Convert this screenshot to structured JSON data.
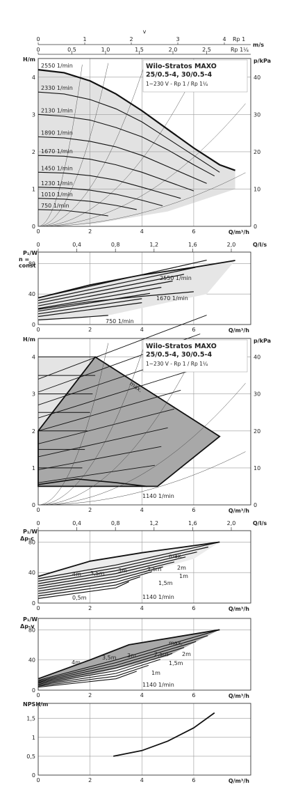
{
  "chart_data": [
    {
      "id": "h_const",
      "type": "line",
      "title": "Wilo-Stratos MAXO",
      "subtitle": "25/0.5-4, 30/0.5-4",
      "note": "1~230 V - Rp 1 / Rp 1¼",
      "ylabel": "H/m",
      "ylabel_right": "p/kPa",
      "xlabel": "Q/m³/h",
      "xlim": [
        0,
        8.2
      ],
      "ylim": [
        0,
        4.5
      ],
      "xticks": [
        0,
        2,
        4,
        6
      ],
      "yticks": [
        0,
        1,
        2,
        3,
        4
      ],
      "yticks_right": [
        0,
        10,
        20,
        30,
        40
      ],
      "top_axes": [
        {
          "label": "v",
          "ticks": [
            0,
            1,
            2,
            3,
            4
          ],
          "extra": "Rp 1",
          "unit": "m/s"
        },
        {
          "ticks": [
            0,
            0.5,
            1.0,
            1.5,
            2.0,
            2.5
          ],
          "extra": "Rp 1¼"
        }
      ],
      "series": [
        {
          "name": "2550 1/min",
          "x": [
            0,
            1,
            2,
            3,
            4,
            5,
            6,
            7,
            7.6
          ],
          "y": [
            4.2,
            4.12,
            3.9,
            3.55,
            3.1,
            2.6,
            2.1,
            1.65,
            1.5
          ]
        },
        {
          "name": "2330 1/min",
          "x": [
            0,
            1,
            2,
            3,
            4,
            5,
            6,
            7
          ],
          "y": [
            3.6,
            3.55,
            3.4,
            3.15,
            2.8,
            2.35,
            1.9,
            1.45
          ]
        },
        {
          "name": "2130 1/min",
          "x": [
            0,
            1,
            2,
            3,
            4,
            5,
            6,
            6.8
          ],
          "y": [
            3.0,
            2.95,
            2.85,
            2.65,
            2.4,
            2.05,
            1.65,
            1.35
          ]
        },
        {
          "name": "1890 1/min",
          "x": [
            0,
            1,
            2,
            3,
            4,
            5,
            6,
            6.5
          ],
          "y": [
            2.4,
            2.37,
            2.28,
            2.13,
            1.9,
            1.6,
            1.3,
            1.15
          ]
        },
        {
          "name": "1670 1/min",
          "x": [
            0,
            1,
            2,
            3,
            4,
            5,
            6
          ],
          "y": [
            1.9,
            1.88,
            1.8,
            1.65,
            1.45,
            1.2,
            0.95
          ]
        },
        {
          "name": "1450 1/min",
          "x": [
            0,
            1,
            2,
            3,
            4,
            5,
            5.5
          ],
          "y": [
            1.45,
            1.43,
            1.36,
            1.24,
            1.05,
            0.85,
            0.75
          ]
        },
        {
          "name": "1230 1/min",
          "x": [
            0,
            1,
            2,
            3,
            4,
            4.8
          ],
          "y": [
            1.05,
            1.03,
            0.97,
            0.86,
            0.7,
            0.55
          ]
        },
        {
          "name": "1010 1/min",
          "x": [
            0,
            1,
            2,
            3,
            3.8
          ],
          "y": [
            0.75,
            0.73,
            0.67,
            0.56,
            0.45
          ]
        },
        {
          "name": "750 1/min",
          "x": [
            0,
            1,
            2,
            2.7
          ],
          "y": [
            0.45,
            0.43,
            0.35,
            0.28
          ]
        }
      ]
    },
    {
      "id": "p_const",
      "type": "line",
      "ylabel": "P₁/W",
      "ylabel_extra": [
        "n =",
        "const"
      ],
      "xlabel": "Q/m³/h",
      "top_axis_label": "Q/l/s",
      "top_ticks": [
        0,
        0.4,
        0.8,
        1.2,
        1.6,
        2.0
      ],
      "xlim": [
        0,
        8.2
      ],
      "ylim": [
        0,
        95
      ],
      "xticks": [
        0,
        2,
        4,
        6
      ],
      "yticks": [
        0,
        40,
        80
      ],
      "annotations": [
        "2550 1/min",
        "1670 1/min",
        "750 1/min"
      ],
      "series": [
        {
          "name": "2550 1/min",
          "x": [
            0,
            2,
            4,
            6,
            7.6
          ],
          "y": [
            35,
            52,
            65,
            75,
            84
          ]
        },
        {
          "name": "1670 1/min",
          "x": [
            0,
            2,
            4,
            6
          ],
          "y": [
            20,
            30,
            37,
            43
          ]
        },
        {
          "name": "750 1/min",
          "x": [
            0,
            1.5,
            2.7
          ],
          "y": [
            6,
            9,
            12
          ]
        }
      ]
    },
    {
      "id": "h_dp",
      "type": "area",
      "title": "Wilo-Stratos MAXO",
      "subtitle": "25/0.5-4, 30/0.5-4",
      "note": "1~230 V - Rp 1 / Rp 1¼",
      "ylabel": "H/m",
      "ylabel_right": "p/kPa",
      "xlabel": "Q/m³/h",
      "xlim": [
        0,
        8.2
      ],
      "ylim": [
        0,
        4.5
      ],
      "xticks": [
        0,
        2,
        4,
        6
      ],
      "yticks": [
        0,
        1,
        2,
        3,
        4
      ],
      "yticks_right": [
        0,
        10,
        20,
        30,
        40
      ],
      "annotations": [
        "max.",
        "1140 1/min"
      ],
      "envelope": {
        "x": [
          0,
          2.2,
          7.0,
          4.6,
          0
        ],
        "y": [
          2.0,
          4.0,
          1.85,
          0.5,
          0.5
        ]
      }
    },
    {
      "id": "p_dpc",
      "type": "line",
      "ylabel": "P₁/W",
      "ylabel_extra": "Δp-c",
      "xlabel": "Q/m³/h",
      "top_axis_label": "Q/l/s",
      "top_ticks": [
        0,
        0.4,
        0.8,
        1.2,
        1.6,
        2.0
      ],
      "xlim": [
        0,
        8.2
      ],
      "ylim": [
        0,
        95
      ],
      "xticks": [
        0,
        2,
        4,
        6
      ],
      "yticks": [
        0,
        40,
        80
      ],
      "annotations": [
        "max.",
        "4m",
        "3,5m",
        "3m",
        "2,5m",
        "2m",
        "1,5m",
        "1m",
        "0,5m",
        "1140 1/min"
      ],
      "series": [
        {
          "name": "max.",
          "x": [
            0,
            2,
            4,
            7
          ],
          "y": [
            35,
            55,
            66,
            80
          ]
        }
      ]
    },
    {
      "id": "p_dpv",
      "type": "line",
      "ylabel": "P₁/W",
      "ylabel_extra": "Δp-v",
      "xlabel": "Q/m³/h",
      "xlim": [
        0,
        8.2
      ],
      "ylim": [
        0,
        95
      ],
      "xticks": [
        0,
        2,
        4,
        6
      ],
      "yticks": [
        0,
        40,
        80
      ],
      "annotations": [
        "max.",
        "4m",
        "3,5m",
        "3m",
        "2,5m",
        "2m",
        "1,5m",
        "1m",
        "1140 1/min"
      ],
      "series": [
        {
          "name": "max.",
          "x": [
            0,
            2,
            3.5,
            7
          ],
          "y": [
            15,
            40,
            60,
            80
          ]
        }
      ]
    },
    {
      "id": "npsh",
      "type": "line",
      "ylabel": "NPSH/m",
      "xlabel": "Q/m³/h",
      "xlim": [
        0,
        8.2
      ],
      "ylim": [
        0,
        1.9
      ],
      "xticks": [
        0,
        2,
        4,
        6
      ],
      "yticks": [
        0,
        0.5,
        1,
        1.5
      ],
      "series": [
        {
          "x": [
            2.9,
            4,
            5,
            6,
            6.8
          ],
          "y": [
            0.5,
            0.65,
            0.9,
            1.25,
            1.65
          ]
        }
      ]
    }
  ]
}
